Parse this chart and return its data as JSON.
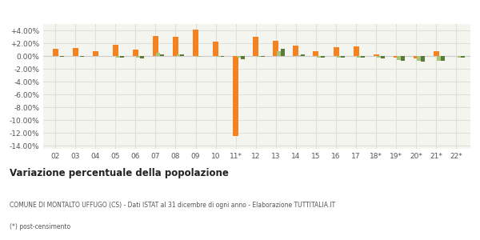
{
  "years": [
    "02",
    "03",
    "04",
    "05",
    "06",
    "07",
    "08",
    "09",
    "10",
    "11*",
    "12",
    "13",
    "14",
    "15",
    "16",
    "17",
    "18*",
    "19*",
    "20*",
    "21*",
    "22*"
  ],
  "montalto": [
    1.1,
    1.2,
    0.8,
    1.8,
    1.0,
    3.1,
    3.0,
    4.1,
    2.2,
    -12.5,
    3.0,
    2.4,
    1.6,
    0.8,
    1.4,
    1.5,
    0.3,
    -0.3,
    -0.4,
    0.8,
    0.05
  ],
  "provincia": [
    -0.05,
    -0.05,
    0.05,
    -0.2,
    -0.3,
    0.5,
    0.3,
    -0.1,
    -0.1,
    -0.2,
    -0.1,
    0.7,
    0.1,
    -0.2,
    -0.2,
    -0.2,
    -0.3,
    -0.6,
    -0.8,
    -0.7,
    -0.2
  ],
  "calabria": [
    -0.1,
    -0.1,
    -0.05,
    -0.3,
    -0.35,
    0.3,
    0.2,
    -0.05,
    -0.1,
    -0.5,
    -0.15,
    1.1,
    0.2,
    -0.3,
    -0.25,
    -0.3,
    -0.35,
    -0.7,
    -0.9,
    -0.8,
    -0.25
  ],
  "montalto_color": "#f5821e",
  "provincia_color": "#a8c47a",
  "calabria_color": "#5a7a3a",
  "bg_color": "#f5f5f0",
  "grid_color": "#e0e0d8",
  "title_bold": "Variazione percentuale della popolazione",
  "source_line1": "COMUNE DI MONTALTO UFFUGO (CS) - Dati ISTAT al 31 dicembre di ogni anno - Elaborazione TUTTITALIA.IT",
  "source_line2": "(*) post-censimento",
  "ylim": [
    -14.5,
    5.0
  ],
  "yticks": [
    4.0,
    2.0,
    0.0,
    -2.0,
    -4.0,
    -6.0,
    -8.0,
    -10.0,
    -12.0,
    -14.0
  ],
  "ytick_labels": [
    "+4.00%",
    "+2.00%",
    "0.00%",
    "-2.00%",
    "-4.00%",
    "-6.00%",
    "-8.00%",
    "-10.00%",
    "-12.00%",
    "-14.00%"
  ]
}
